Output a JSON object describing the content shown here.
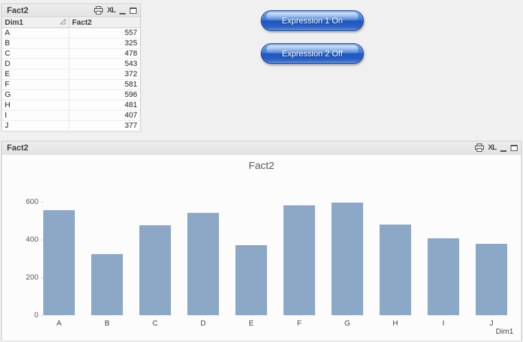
{
  "icons": {
    "excel_label": "XL"
  },
  "table_window": {
    "title": "Fact2",
    "columns": {
      "dim": "Dim1",
      "fact": "Fact2"
    },
    "rows": [
      {
        "dim": "A",
        "fact": "557"
      },
      {
        "dim": "B",
        "fact": "325"
      },
      {
        "dim": "C",
        "fact": "478"
      },
      {
        "dim": "D",
        "fact": "543"
      },
      {
        "dim": "E",
        "fact": "372"
      },
      {
        "dim": "F",
        "fact": "581"
      },
      {
        "dim": "G",
        "fact": "596"
      },
      {
        "dim": "H",
        "fact": "481"
      },
      {
        "dim": "I",
        "fact": "407"
      },
      {
        "dim": "J",
        "fact": "377"
      }
    ]
  },
  "buttons": [
    {
      "label": "Expression 1 On"
    },
    {
      "label": "Expression 2 Off"
    }
  ],
  "chart_window": {
    "title": "Fact2"
  },
  "chart_data": {
    "type": "bar",
    "title": "Fact2",
    "categories": [
      "A",
      "B",
      "C",
      "D",
      "E",
      "F",
      "G",
      "H",
      "I",
      "J"
    ],
    "values": [
      557,
      325,
      478,
      543,
      372,
      581,
      596,
      481,
      407,
      377
    ],
    "xlabel": "Dim1",
    "ylabel": "",
    "ylim": [
      0,
      600
    ],
    "yticks": [
      0,
      200,
      400,
      600
    ],
    "bar_color": "#8da7c7",
    "grid": false,
    "legend": "none"
  },
  "colors": {
    "bar": "#8da7c7",
    "page_background": "#f0f0f0",
    "caption_background": "#e8e8e8",
    "button_blue": "#2a62c8"
  }
}
